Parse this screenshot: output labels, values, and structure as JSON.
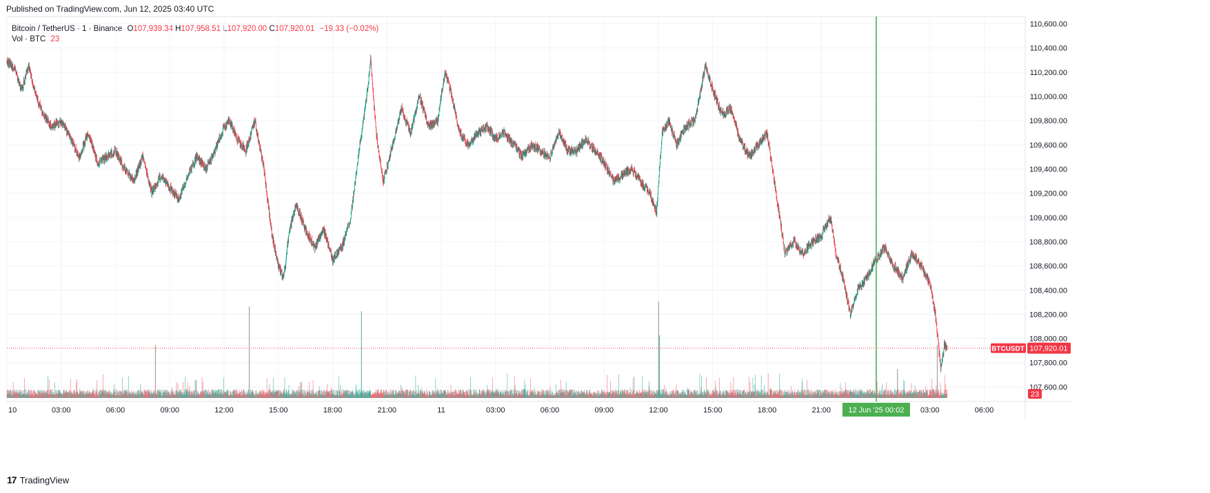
{
  "header": {
    "published": "Published on TradingView.com, Jun 12, 2025 03:40 UTC"
  },
  "legend": {
    "symbol": "Bitcoin / TetherUS · 1 · Binance",
    "o_label": "O",
    "o_value": "107,939.34",
    "h_label": "H",
    "h_value": "107,958.51",
    "l_label": "L",
    "l_value": "107,920.00",
    "c_label": "C",
    "c_value": "107,920.01",
    "change": "−19.33 (−0.02%)",
    "vol_label": "Vol · BTC",
    "vol_value": "23"
  },
  "footer": {
    "brand": "TradingView",
    "logo": "17"
  },
  "colors": {
    "up": "#089981",
    "down": "#f23645",
    "grid": "#f0f3fa",
    "session_line": "#4caf50",
    "price_label": "#f23645"
  },
  "chart_data": {
    "type": "candlestick",
    "symbol": "BTCUSDT",
    "interval": "1",
    "y_ticks": [
      107600,
      107800,
      108000,
      108200,
      108400,
      108600,
      108800,
      109000,
      109200,
      109400,
      109600,
      109800,
      110000,
      110200,
      110400,
      110600
    ],
    "y_tick_labels": [
      "107,600.00",
      "107,800.00",
      "108,000.00",
      "108,200.00",
      "108,400.00",
      "108,600.00",
      "108,800.00",
      "109,000.00",
      "109,200.00",
      "109,400.00",
      "109,600.00",
      "109,800.00",
      "110,000.00",
      "110,200.00",
      "110,400.00",
      "110,600.00"
    ],
    "ylim": [
      107480,
      110660
    ],
    "x_tick_labels": [
      "10",
      "03:00",
      "06:00",
      "09:00",
      "12:00",
      "15:00",
      "18:00",
      "21:00",
      "11",
      "03:00",
      "06:00",
      "09:00",
      "12:00",
      "15:00",
      "18:00",
      "21:00",
      "12 Jun '25  00:02",
      "03:00",
      "06:00"
    ],
    "x_tick_hours": [
      0,
      3,
      6,
      9,
      12,
      15,
      18,
      21,
      24,
      27,
      30,
      33,
      36,
      39,
      42,
      45,
      48.033,
      51,
      54
    ],
    "xlim_hours": [
      0,
      56
    ],
    "last_price": 107920.01,
    "last_price_label": "107,920.01",
    "last_price_tag": "BTCUSDT",
    "last_volume_label": "23",
    "crosshair_hour": 48.033,
    "price_path": [
      [
        0.0,
        110300
      ],
      [
        0.5,
        110200
      ],
      [
        0.8,
        110050
      ],
      [
        1.2,
        110250
      ],
      [
        1.6,
        110000
      ],
      [
        2.0,
        109850
      ],
      [
        2.5,
        109750
      ],
      [
        3.0,
        109800
      ],
      [
        3.5,
        109650
      ],
      [
        4.0,
        109500
      ],
      [
        4.5,
        109700
      ],
      [
        5.0,
        109450
      ],
      [
        5.5,
        109500
      ],
      [
        6.0,
        109550
      ],
      [
        6.5,
        109400
      ],
      [
        7.0,
        109300
      ],
      [
        7.5,
        109500
      ],
      [
        8.0,
        109200
      ],
      [
        8.5,
        109350
      ],
      [
        9.0,
        109250
      ],
      [
        9.5,
        109150
      ],
      [
        10.0,
        109350
      ],
      [
        10.5,
        109500
      ],
      [
        11.0,
        109400
      ],
      [
        11.5,
        109550
      ],
      [
        12.0,
        109750
      ],
      [
        12.3,
        109800
      ],
      [
        12.7,
        109650
      ],
      [
        13.2,
        109550
      ],
      [
        13.7,
        109800
      ],
      [
        14.2,
        109400
      ],
      [
        14.6,
        108900
      ],
      [
        15.0,
        108600
      ],
      [
        15.3,
        108500
      ],
      [
        15.6,
        108900
      ],
      [
        16.0,
        109100
      ],
      [
        16.5,
        108900
      ],
      [
        17.0,
        108750
      ],
      [
        17.5,
        108900
      ],
      [
        18.0,
        108650
      ],
      [
        18.5,
        108750
      ],
      [
        19.0,
        109000
      ],
      [
        19.4,
        109500
      ],
      [
        19.8,
        109900
      ],
      [
        20.1,
        110300
      ],
      [
        20.4,
        109700
      ],
      [
        20.8,
        109300
      ],
      [
        21.3,
        109600
      ],
      [
        21.8,
        109900
      ],
      [
        22.3,
        109700
      ],
      [
        22.8,
        110000
      ],
      [
        23.3,
        109750
      ],
      [
        23.8,
        109800
      ],
      [
        24.2,
        110200
      ],
      [
        24.6,
        110000
      ],
      [
        25.0,
        109700
      ],
      [
        25.5,
        109600
      ],
      [
        26.0,
        109700
      ],
      [
        26.5,
        109750
      ],
      [
        27.0,
        109650
      ],
      [
        27.5,
        109700
      ],
      [
        28.0,
        109600
      ],
      [
        28.5,
        109500
      ],
      [
        29.0,
        109600
      ],
      [
        29.5,
        109550
      ],
      [
        30.0,
        109500
      ],
      [
        30.5,
        109700
      ],
      [
        31.0,
        109550
      ],
      [
        31.5,
        109550
      ],
      [
        32.0,
        109650
      ],
      [
        32.5,
        109550
      ],
      [
        33.0,
        109450
      ],
      [
        33.5,
        109300
      ],
      [
        34.0,
        109350
      ],
      [
        34.5,
        109400
      ],
      [
        35.0,
        109300
      ],
      [
        35.5,
        109200
      ],
      [
        35.9,
        109050
      ],
      [
        36.2,
        109700
      ],
      [
        36.6,
        109800
      ],
      [
        37.0,
        109600
      ],
      [
        37.5,
        109750
      ],
      [
        38.0,
        109800
      ],
      [
        38.6,
        110250
      ],
      [
        39.0,
        110050
      ],
      [
        39.5,
        109850
      ],
      [
        40.0,
        109900
      ],
      [
        40.5,
        109650
      ],
      [
        41.0,
        109500
      ],
      [
        41.5,
        109600
      ],
      [
        42.0,
        109700
      ],
      [
        42.3,
        109400
      ],
      [
        42.6,
        109100
      ],
      [
        43.0,
        108700
      ],
      [
        43.5,
        108800
      ],
      [
        44.0,
        108700
      ],
      [
        44.5,
        108800
      ],
      [
        45.0,
        108850
      ],
      [
        45.5,
        109000
      ],
      [
        45.8,
        108700
      ],
      [
        46.2,
        108500
      ],
      [
        46.6,
        108200
      ],
      [
        47.0,
        108400
      ],
      [
        47.5,
        108500
      ],
      [
        48.0,
        108650
      ],
      [
        48.5,
        108750
      ],
      [
        49.0,
        108600
      ],
      [
        49.5,
        108500
      ],
      [
        50.0,
        108700
      ],
      [
        50.5,
        108600
      ],
      [
        51.0,
        108450
      ],
      [
        51.3,
        108200
      ],
      [
        51.6,
        107750
      ],
      [
        51.8,
        107950
      ],
      [
        51.95,
        107920
      ]
    ],
    "volume_spikes": [
      [
        8.2,
        0.55
      ],
      [
        13.4,
        0.95
      ],
      [
        19.6,
        0.9
      ],
      [
        36.0,
        1.0
      ],
      [
        36.05,
        0.65
      ],
      [
        49.2,
        0.3
      ],
      [
        51.4,
        0.55
      ]
    ]
  }
}
